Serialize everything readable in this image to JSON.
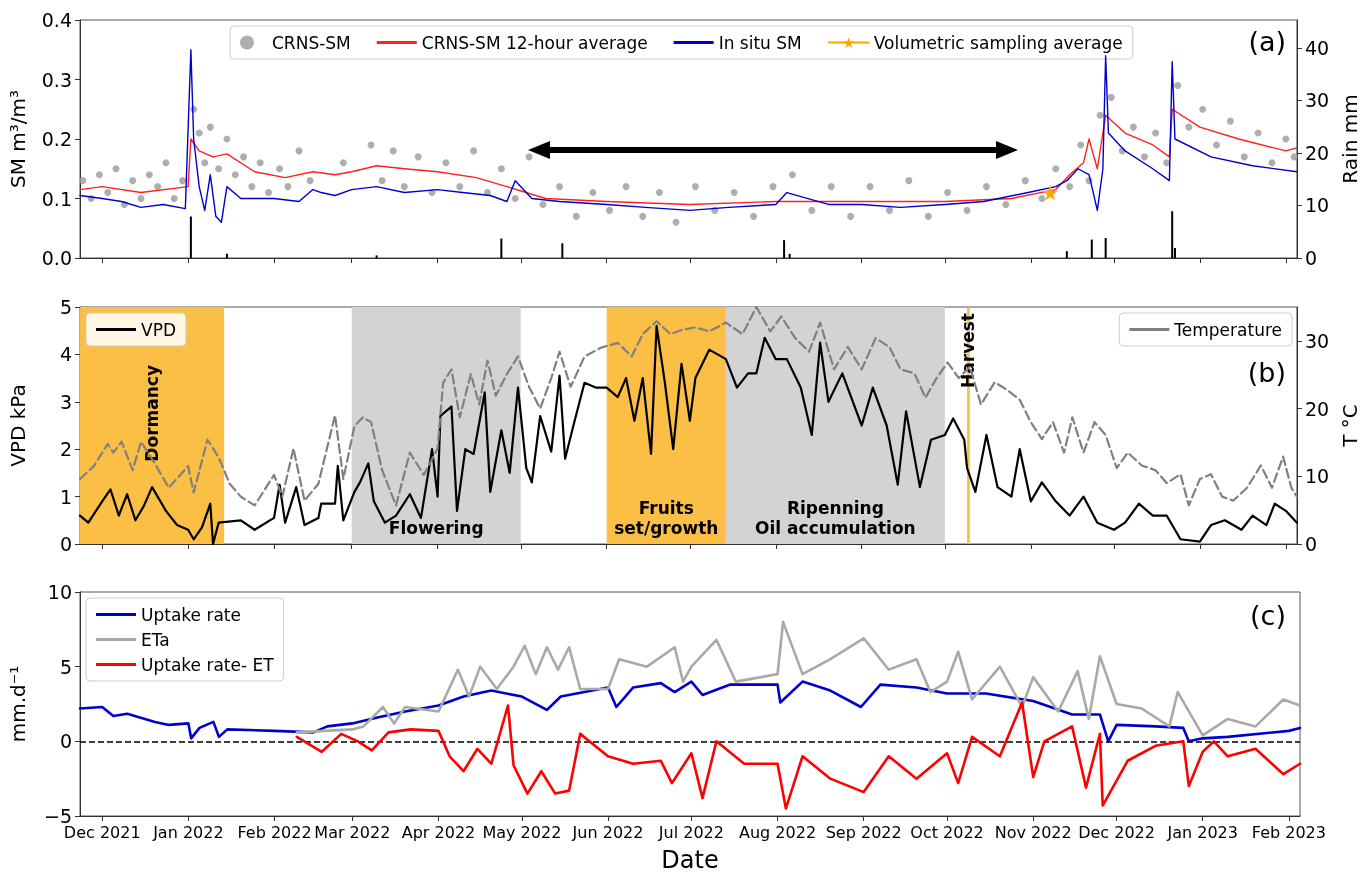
{
  "chart_data": [
    {
      "type": "line",
      "ylabel": "SM m³/m³",
      "y2label": "Rain mm",
      "xlim": [
        "2021-11-23",
        "2023-02-05"
      ],
      "xticks": [
        {
          "value": "2021-12-01",
          "label": null
        },
        {
          "value": "2022-01-01",
          "label": null
        },
        {
          "value": "2022-02-01",
          "label": null
        },
        {
          "value": "2022-03-01",
          "label": null
        },
        {
          "value": "2022-04-01",
          "label": null
        },
        {
          "value": "2022-05-01",
          "label": null
        },
        {
          "value": "2022-06-01",
          "label": null
        },
        {
          "value": "2022-07-01",
          "label": null
        },
        {
          "value": "2022-08-01",
          "label": null
        },
        {
          "value": "2022-09-01",
          "label": null
        },
        {
          "value": "2022-10-01",
          "label": null
        },
        {
          "value": "2022-11-01",
          "label": null
        },
        {
          "value": "2022-12-01",
          "label": null
        },
        {
          "value": "2023-01-01",
          "label": null
        },
        {
          "value": "2023-02-01",
          "label": null
        }
      ],
      "ylim": [
        0,
        0.4
      ],
      "yticks": [
        {
          "value": 0,
          "label": "0.0"
        },
        {
          "value": 0.1,
          "label": "0.1"
        },
        {
          "value": 0.2,
          "label": "0.2"
        },
        {
          "value": 0.3,
          "label": "0.3"
        },
        {
          "value": 0.4,
          "label": "0.4"
        }
      ],
      "y2lim": [
        0,
        45.3
      ],
      "y2ticks": [
        0,
        10,
        20,
        30,
        40
      ],
      "tick_labels": "y",
      "legend": "top",
      "annotations": [
        "(a)"
      ],
      "series": [
        {
          "name": "CRNS-SM",
          "type": "scatter",
          "marker": "circle",
          "color": "#a0a0a0",
          "x": [
            "2021-11-24",
            "2021-11-27",
            "2021-11-30",
            "2021-12-03",
            "2021-12-06",
            "2021-12-09",
            "2021-12-12",
            "2021-12-15",
            "2021-12-18",
            "2021-12-21",
            "2021-12-24",
            "2021-12-27",
            "2021-12-30",
            "2022-01-03",
            "2022-01-05",
            "2022-01-07",
            "2022-01-09",
            "2022-01-12",
            "2022-01-15",
            "2022-01-18",
            "2022-01-21",
            "2022-01-24",
            "2022-01-27",
            "2022-01-30",
            "2022-02-03",
            "2022-02-06",
            "2022-02-10",
            "2022-02-14",
            "2022-02-26",
            "2022-03-08",
            "2022-03-12",
            "2022-03-16",
            "2022-03-20",
            "2022-03-25",
            "2022-03-30",
            "2022-04-04",
            "2022-04-09",
            "2022-04-14",
            "2022-04-19",
            "2022-04-24",
            "2022-04-29",
            "2022-05-04",
            "2022-05-09",
            "2022-05-15",
            "2022-05-21",
            "2022-05-27",
            "2022-06-02",
            "2022-06-08",
            "2022-06-14",
            "2022-06-20",
            "2022-06-26",
            "2022-07-03",
            "2022-07-10",
            "2022-07-17",
            "2022-07-24",
            "2022-07-31",
            "2022-08-07",
            "2022-08-14",
            "2022-08-21",
            "2022-08-28",
            "2022-09-04",
            "2022-09-11",
            "2022-09-18",
            "2022-09-25",
            "2022-10-02",
            "2022-10-09",
            "2022-10-16",
            "2022-10-23",
            "2022-10-30",
            "2022-11-05",
            "2022-11-10",
            "2022-11-15",
            "2022-11-19",
            "2022-11-22",
            "2022-11-26",
            "2022-11-30",
            "2022-12-04",
            "2022-12-08",
            "2022-12-12",
            "2022-12-16",
            "2022-12-20",
            "2022-12-24",
            "2022-12-28",
            "2023-01-02",
            "2023-01-07",
            "2023-01-12",
            "2023-01-17",
            "2023-01-22",
            "2023-01-27",
            "2023-02-01",
            "2023-02-04"
          ],
          "values": [
            0.13,
            0.1,
            0.14,
            0.11,
            0.15,
            0.09,
            0.13,
            0.1,
            0.14,
            0.12,
            0.16,
            0.1,
            0.13,
            0.25,
            0.21,
            0.16,
            0.22,
            0.15,
            0.2,
            0.14,
            0.17,
            0.12,
            0.16,
            0.11,
            0.15,
            0.12,
            0.18,
            0.13,
            0.16,
            0.19,
            0.13,
            0.18,
            0.12,
            0.17,
            0.11,
            0.16,
            0.12,
            0.18,
            0.11,
            0.15,
            0.1,
            0.17,
            0.09,
            0.12,
            0.07,
            0.11,
            0.08,
            0.12,
            0.07,
            0.11,
            0.06,
            0.12,
            0.08,
            0.11,
            0.07,
            0.12,
            0.14,
            0.08,
            0.12,
            0.07,
            0.12,
            0.08,
            0.13,
            0.07,
            0.11,
            0.08,
            0.12,
            0.09,
            0.13,
            0.1,
            0.15,
            0.12,
            0.19,
            0.13,
            0.24,
            0.27,
            0.18,
            0.22,
            0.17,
            0.21,
            0.16,
            0.29,
            0.22,
            0.25,
            0.19,
            0.23,
            0.17,
            0.21,
            0.16,
            0.2,
            0.17
          ]
        },
        {
          "name": "CRNS-SM 12-hour average",
          "marker": "none",
          "color": "#ff2020",
          "x": [
            "2021-11-23",
            "2021-12-01",
            "2021-12-15",
            "2022-01-01",
            "2022-01-02",
            "2022-01-05",
            "2022-01-10",
            "2022-01-15",
            "2022-01-25",
            "2022-02-05",
            "2022-02-15",
            "2022-02-23",
            "2022-03-01",
            "2022-03-10",
            "2022-03-20",
            "2022-04-01",
            "2022-04-15",
            "2022-04-26",
            "2022-05-10",
            "2022-06-01",
            "2022-07-01",
            "2022-08-01",
            "2022-09-01",
            "2022-10-01",
            "2022-10-25",
            "2022-11-10",
            "2022-11-15",
            "2022-11-20",
            "2022-11-22",
            "2022-11-25",
            "2022-11-28",
            "2022-12-05",
            "2022-12-15",
            "2022-12-21",
            "2022-12-22",
            "2023-01-01",
            "2023-01-15",
            "2023-02-01",
            "2023-02-05"
          ],
          "values": [
            0.115,
            0.12,
            0.11,
            0.12,
            0.2,
            0.18,
            0.17,
            0.175,
            0.145,
            0.135,
            0.145,
            0.14,
            0.145,
            0.155,
            0.15,
            0.145,
            0.135,
            0.12,
            0.1,
            0.095,
            0.09,
            0.095,
            0.095,
            0.095,
            0.1,
            0.115,
            0.14,
            0.16,
            0.2,
            0.15,
            0.24,
            0.21,
            0.19,
            0.17,
            0.25,
            0.22,
            0.2,
            0.18,
            0.185
          ]
        },
        {
          "name": "In situ SM",
          "marker": "none",
          "color": "#0000cc",
          "x": [
            "2021-11-23",
            "2021-12-01",
            "2021-12-08",
            "2021-12-15",
            "2021-12-23",
            "2021-12-31",
            "2022-01-02",
            "2022-01-03",
            "2022-01-05",
            "2022-01-07",
            "2022-01-09",
            "2022-01-11",
            "2022-01-13",
            "2022-01-15",
            "2022-01-20",
            "2022-02-01",
            "2022-02-10",
            "2022-02-15",
            "2022-02-18",
            "2022-02-23",
            "2022-03-01",
            "2022-03-10",
            "2022-03-20",
            "2022-04-01",
            "2022-04-10",
            "2022-04-20",
            "2022-04-26",
            "2022-04-29",
            "2022-05-05",
            "2022-05-15",
            "2022-06-01",
            "2022-06-15",
            "2022-07-01",
            "2022-07-15",
            "2022-08-01",
            "2022-08-05",
            "2022-08-20",
            "2022-09-01",
            "2022-09-15",
            "2022-10-01",
            "2022-10-15",
            "2022-10-31",
            "2022-11-10",
            "2022-11-14",
            "2022-11-18",
            "2022-11-22",
            "2022-11-25",
            "2022-11-27",
            "2022-11-28",
            "2022-11-29",
            "2022-12-05",
            "2022-12-15",
            "2022-12-21",
            "2022-12-22",
            "2022-12-23",
            "2023-01-05",
            "2023-01-20",
            "2023-02-05"
          ],
          "values": [
            0.105,
            0.1,
            0.095,
            0.085,
            0.09,
            0.083,
            0.35,
            0.2,
            0.12,
            0.08,
            0.14,
            0.07,
            0.06,
            0.12,
            0.1,
            0.1,
            0.095,
            0.115,
            0.11,
            0.105,
            0.115,
            0.12,
            0.11,
            0.115,
            0.11,
            0.105,
            0.095,
            0.13,
            0.1,
            0.095,
            0.09,
            0.085,
            0.08,
            0.085,
            0.09,
            0.11,
            0.09,
            0.09,
            0.085,
            0.09,
            0.095,
            0.11,
            0.12,
            0.13,
            0.15,
            0.14,
            0.08,
            0.15,
            0.34,
            0.21,
            0.18,
            0.15,
            0.13,
            0.33,
            0.2,
            0.17,
            0.155,
            0.145
          ]
        },
        {
          "name": "Volumetric sampling average",
          "marker": "star",
          "color": "#ffa500",
          "x": [
            "2022-11-08"
          ],
          "values": [
            0.11
          ]
        },
        {
          "type": "bar",
          "axis": "y2",
          "color": "#000000",
          "x": [
            "2022-01-02",
            "2022-01-15",
            "2022-03-10",
            "2022-04-24",
            "2022-05-16",
            "2022-08-04",
            "2022-08-06",
            "2022-11-14",
            "2022-11-23",
            "2022-11-28",
            "2022-12-22",
            "2022-12-23"
          ],
          "values": [
            7.9,
            0.8,
            0.5,
            3.7,
            2.8,
            3.4,
            0.8,
            1.3,
            3.5,
            3.8,
            8.9,
            1.9
          ]
        }
      ]
    },
    {
      "type": "line",
      "ylabel": "VPD kPa",
      "y2label": "T °C",
      "xlim": [
        "2021-11-23",
        "2023-02-05"
      ],
      "xticks": [
        {
          "value": "2021-12-01",
          "label": null
        },
        {
          "value": "2022-01-01",
          "label": null
        },
        {
          "value": "2022-02-01",
          "label": null
        },
        {
          "value": "2022-03-01",
          "label": null
        },
        {
          "value": "2022-04-01",
          "label": null
        },
        {
          "value": "2022-05-01",
          "label": null
        },
        {
          "value": "2022-06-01",
          "label": null
        },
        {
          "value": "2022-07-01",
          "label": null
        },
        {
          "value": "2022-08-01",
          "label": null
        },
        {
          "value": "2022-09-01",
          "label": null
        },
        {
          "value": "2022-10-01",
          "label": null
        },
        {
          "value": "2022-11-01",
          "label": null
        },
        {
          "value": "2022-12-01",
          "label": null
        },
        {
          "value": "2023-01-01",
          "label": null
        },
        {
          "value": "2023-02-01",
          "label": null
        }
      ],
      "ylim": [
        0,
        5
      ],
      "yticks": [
        0,
        1,
        2,
        3,
        4,
        5
      ],
      "y2lim": [
        0,
        35
      ],
      "y2ticks": [
        0,
        10,
        20,
        30
      ],
      "tick_labels": "y",
      "legend": "top",
      "annotations": [
        "(b)"
      ],
      "bands": [
        {
          "axis": "x",
          "from": "2021-11-23",
          "to": "2022-01-14",
          "label": "Dormancy",
          "color": "#fbbf45"
        },
        {
          "axis": "x",
          "from": "2022-03-01",
          "to": "2022-05-01",
          "label": "Flowering",
          "color": "#d3d3d3"
        },
        {
          "axis": "x",
          "from": "2022-06-01",
          "to": "2022-07-14",
          "label": "Fruits\nset/growth",
          "color": "#fbbf45"
        },
        {
          "axis": "x",
          "from": "2022-07-14",
          "to": "2022-10-01",
          "label": "Ripenning\nOil accumulation",
          "color": "#d3d3d3"
        },
        {
          "axis": "x",
          "from": "2022-10-09",
          "to": "2022-10-10",
          "label": "Harvest",
          "color": "#fbbf45"
        }
      ],
      "series": [
        {
          "name": "VPD",
          "color": "#000000",
          "x": [
            "2021-11-23",
            "2021-11-26",
            "2021-12-01",
            "2021-12-04",
            "2021-12-07",
            "2021-12-10",
            "2021-12-13",
            "2021-12-16",
            "2021-12-19",
            "2021-12-24",
            "2021-12-28",
            "2022-01-01",
            "2022-01-03",
            "2022-01-06",
            "2022-01-09",
            "2022-01-10",
            "2022-01-12",
            "2022-01-20",
            "2022-01-25",
            "2022-02-01",
            "2022-02-03",
            "2022-02-05",
            "2022-02-09",
            "2022-02-12",
            "2022-02-17",
            "2022-02-18",
            "2022-02-23",
            "2022-02-24",
            "2022-02-26",
            "2022-03-02",
            "2022-03-04",
            "2022-03-07",
            "2022-03-09",
            "2022-03-13",
            "2022-03-17",
            "2022-03-22",
            "2022-03-26",
            "2022-03-30",
            "2022-04-01",
            "2022-04-02",
            "2022-04-06",
            "2022-04-08",
            "2022-04-11",
            "2022-04-14",
            "2022-04-18",
            "2022-04-20",
            "2022-04-24",
            "2022-04-27",
            "2022-04-30",
            "2022-05-03",
            "2022-05-05",
            "2022-05-08",
            "2022-05-12",
            "2022-05-15",
            "2022-05-17",
            "2022-05-20",
            "2022-05-24",
            "2022-05-28",
            "2022-06-01",
            "2022-06-05",
            "2022-06-08",
            "2022-06-11",
            "2022-06-14",
            "2022-06-17",
            "2022-06-19",
            "2022-06-22",
            "2022-06-25",
            "2022-06-28",
            "2022-07-01",
            "2022-07-03",
            "2022-07-08",
            "2022-07-14",
            "2022-07-18",
            "2022-07-22",
            "2022-07-25",
            "2022-07-28",
            "2022-08-01",
            "2022-08-05",
            "2022-08-10",
            "2022-08-14",
            "2022-08-17",
            "2022-08-20",
            "2022-08-25",
            "2022-09-01",
            "2022-09-05",
            "2022-09-10",
            "2022-09-14",
            "2022-09-17",
            "2022-09-22",
            "2022-09-26",
            "2022-10-01",
            "2022-10-04",
            "2022-10-08",
            "2022-10-09",
            "2022-10-12",
            "2022-10-16",
            "2022-10-20",
            "2022-10-25",
            "2022-10-28",
            "2022-11-01",
            "2022-11-05",
            "2022-11-10",
            "2022-11-15",
            "2022-11-20",
            "2022-11-25",
            "2022-12-01",
            "2022-12-05",
            "2022-12-10",
            "2022-12-15",
            "2022-12-20",
            "2022-12-25",
            "2023-01-01",
            "2023-01-05",
            "2023-01-10",
            "2023-01-16",
            "2023-01-20",
            "2023-01-25",
            "2023-01-28",
            "2023-02-01",
            "2023-02-05"
          ],
          "values": [
            0.6,
            0.45,
            0.9,
            1.15,
            0.6,
            1.05,
            0.5,
            0.8,
            1.2,
            0.7,
            0.4,
            0.3,
            0.1,
            0.35,
            0.85,
            0,
            0.45,
            0.5,
            0.3,
            0.55,
            1.25,
            0.45,
            1.2,
            0.4,
            0.55,
            0.85,
            0.85,
            1.65,
            0.5,
            1.1,
            1.3,
            1.7,
            0.9,
            0.45,
            0.6,
            1.05,
            0.55,
            2,
            1,
            2.7,
            2.9,
            0.7,
            2,
            1.9,
            3.2,
            1.1,
            2.4,
            1.5,
            3.3,
            1.6,
            1.3,
            2.7,
            1.95,
            3.55,
            1.8,
            2.5,
            3.4,
            3.3,
            3.3,
            3.1,
            3.5,
            2.6,
            3.5,
            1.9,
            4.6,
            3.4,
            2,
            3.8,
            2.6,
            3.5,
            4.1,
            3.9,
            3.3,
            3.6,
            3.6,
            4.35,
            3.9,
            3.9,
            3.3,
            2.3,
            4.25,
            3,
            3.6,
            2.5,
            3.3,
            2.5,
            1.25,
            2.8,
            1.2,
            2.2,
            2.3,
            2.65,
            2.2,
            1.6,
            1.1,
            2.3,
            1.2,
            1,
            2,
            0.9,
            1.3,
            0.9,
            0.6,
            1,
            0.45,
            0.3,
            0.45,
            0.85,
            0.6,
            0.6,
            0.1,
            0.05,
            0.4,
            0.5,
            0.3,
            0.6,
            0.4,
            0.85,
            0.7,
            0.45
          ]
        },
        {
          "name": "Temperature",
          "axis": "y2",
          "line_style": "dashed",
          "color": "#808080",
          "x": [
            "2021-11-23",
            "2021-11-28",
            "2021-12-03",
            "2021-12-05",
            "2021-12-08",
            "2021-12-12",
            "2021-12-15",
            "2021-12-20",
            "2021-12-25",
            "2022-01-01",
            "2022-01-03",
            "2022-01-08",
            "2022-01-12",
            "2022-01-16",
            "2022-01-20",
            "2022-01-25",
            "2022-02-01",
            "2022-02-04",
            "2022-02-08",
            "2022-02-12",
            "2022-02-17",
            "2022-02-23",
            "2022-02-26",
            "2022-03-02",
            "2022-03-05",
            "2022-03-08",
            "2022-03-12",
            "2022-03-17",
            "2022-03-22",
            "2022-03-27",
            "2022-04-01",
            "2022-04-03",
            "2022-04-06",
            "2022-04-09",
            "2022-04-13",
            "2022-04-16",
            "2022-04-19",
            "2022-04-22",
            "2022-04-26",
            "2022-04-30",
            "2022-05-04",
            "2022-05-08",
            "2022-05-12",
            "2022-05-15",
            "2022-05-19",
            "2022-05-24",
            "2022-05-30",
            "2022-06-05",
            "2022-06-10",
            "2022-06-14",
            "2022-06-19",
            "2022-06-24",
            "2022-06-28",
            "2022-07-03",
            "2022-07-08",
            "2022-07-14",
            "2022-07-20",
            "2022-07-25",
            "2022-07-30",
            "2022-08-03",
            "2022-08-08",
            "2022-08-13",
            "2022-08-17",
            "2022-08-22",
            "2022-08-27",
            "2022-09-01",
            "2022-09-06",
            "2022-09-11",
            "2022-09-15",
            "2022-09-20",
            "2022-09-24",
            "2022-09-28",
            "2022-10-02",
            "2022-10-06",
            "2022-10-10",
            "2022-10-14",
            "2022-10-19",
            "2022-10-24",
            "2022-10-28",
            "2022-11-01",
            "2022-11-05",
            "2022-11-09",
            "2022-11-13",
            "2022-11-16",
            "2022-11-20",
            "2022-11-24",
            "2022-11-28",
            "2022-12-02",
            "2022-12-06",
            "2022-12-11",
            "2022-12-16",
            "2022-12-20",
            "2022-12-25",
            "2022-12-28",
            "2023-01-01",
            "2023-01-05",
            "2023-01-09",
            "2023-01-13",
            "2023-01-18",
            "2023-01-23",
            "2023-01-27",
            "2023-01-31",
            "2023-02-03",
            "2023-02-05"
          ],
          "values": [
            9.6,
            11.5,
            14.8,
            13.5,
            15.1,
            10.9,
            15.1,
            11.9,
            8.3,
            11.5,
            7.6,
            15.4,
            12.8,
            8.9,
            7,
            5.7,
            10.2,
            7,
            14.1,
            6.4,
            8.9,
            19,
            9.6,
            17.4,
            18.7,
            18,
            10.9,
            5.7,
            13.5,
            10.2,
            14.1,
            23.8,
            25.8,
            18.7,
            25.1,
            20.6,
            27.1,
            21.9,
            25.1,
            27.7,
            23.2,
            20,
            24.5,
            28.4,
            23.2,
            27.7,
            29,
            29.7,
            27.7,
            31,
            32.9,
            31,
            31.6,
            32,
            31.4,
            32.7,
            31,
            35,
            31.4,
            33.6,
            30.4,
            28.4,
            32.7,
            25.8,
            29.1,
            25.8,
            30.4,
            29.1,
            25.8,
            25.2,
            21.6,
            24.5,
            26.8,
            24.5,
            26.2,
            20.6,
            23.9,
            22.6,
            21.3,
            18,
            15.5,
            18,
            13.5,
            18.7,
            13.5,
            18,
            16.1,
            11.2,
            13.5,
            11.6,
            10.9,
            9,
            10.3,
            5.7,
            9.6,
            10.3,
            7,
            6.4,
            8.3,
            11.6,
            8.3,
            12.9,
            8.3,
            7
          ]
        }
      ]
    },
    {
      "type": "line",
      "xlabel": "Date",
      "ylabel": "mm.d⁻¹",
      "xlim": [
        "2021-11-23",
        "2023-02-05"
      ],
      "xticks": [
        {
          "value": "2021-12-01",
          "label": "Dec 2021"
        },
        {
          "value": "2022-01-01",
          "label": "Jan 2022"
        },
        {
          "value": "2022-02-01",
          "label": "Feb 2022"
        },
        {
          "value": "2022-03-01",
          "label": "Mar 2022"
        },
        {
          "value": "2022-04-01",
          "label": "Apr 2022"
        },
        {
          "value": "2022-05-01",
          "label": "May 2022"
        },
        {
          "value": "2022-06-01",
          "label": "Jun 2022"
        },
        {
          "value": "2022-07-01",
          "label": "Jul 2022"
        },
        {
          "value": "2022-08-01",
          "label": "Aug 2022"
        },
        {
          "value": "2022-09-01",
          "label": "Sep 2022"
        },
        {
          "value": "2022-10-01",
          "label": "Oct 2022"
        },
        {
          "value": "2022-11-01",
          "label": "Nov 2022"
        },
        {
          "value": "2022-12-01",
          "label": "Dec 2022"
        },
        {
          "value": "2023-01-01",
          "label": "Jan 2023"
        },
        {
          "value": "2023-02-01",
          "label": "Feb 2023"
        }
      ],
      "ylim": [
        -5,
        10
      ],
      "yticks": [
        {
          "value": -5,
          "label": "−5"
        },
        0,
        5,
        10
      ],
      "legend": "top left",
      "annotations": [
        "(c)"
      ],
      "ref_lines": [
        {
          "axis": "y",
          "value": 0,
          "color": "#000000",
          "line_style": "dashed"
        }
      ],
      "series": [
        {
          "name": "Uptake rate",
          "color": "#0000cc",
          "x": [
            "2021-11-23",
            "2021-12-01",
            "2021-12-05",
            "2021-12-10",
            "2021-12-20",
            "2021-12-25",
            "2022-01-01",
            "2022-01-02",
            "2022-01-05",
            "2022-01-10",
            "2022-01-12",
            "2022-01-15",
            "2022-02-01",
            "2022-02-15",
            "2022-02-20",
            "2022-03-01",
            "2022-03-10",
            "2022-03-20",
            "2022-04-01",
            "2022-04-10",
            "2022-04-20",
            "2022-05-01",
            "2022-05-10",
            "2022-05-15",
            "2022-06-01",
            "2022-06-04",
            "2022-06-10",
            "2022-06-20",
            "2022-06-25",
            "2022-07-01",
            "2022-07-05",
            "2022-07-15",
            "2022-08-01",
            "2022-08-02",
            "2022-08-10",
            "2022-08-20",
            "2022-08-31",
            "2022-09-07",
            "2022-09-20",
            "2022-10-01",
            "2022-10-15",
            "2022-11-01",
            "2022-11-15",
            "2022-11-25",
            "2022-11-28",
            "2022-12-01",
            "2022-12-15",
            "2022-12-25",
            "2022-12-27",
            "2023-01-01",
            "2023-01-10",
            "2023-02-01",
            "2023-02-05"
          ],
          "values": [
            2.2,
            2.3,
            1.7,
            1.85,
            1.3,
            1.1,
            1.2,
            0.2,
            0.9,
            1.3,
            0.3,
            0.8,
            0.7,
            0.6,
            1,
            1.2,
            1.6,
            2,
            2.4,
            3,
            3.4,
            3,
            2.1,
            3,
            3.6,
            2.3,
            3.6,
            3.9,
            3.3,
            4,
            3.1,
            3.8,
            3.8,
            2.6,
            4,
            3.4,
            2.3,
            3.8,
            3.6,
            3.2,
            3.2,
            2.7,
            1.8,
            1.8,
            0,
            1.1,
            1,
            0.9,
            0,
            0.2,
            0.3,
            0.7,
            0.9
          ]
        },
        {
          "name": "ETa",
          "color": "#a9a9a9",
          "x": [
            "2022-02-09",
            "2022-03-01",
            "2022-03-05",
            "2022-03-12",
            "2022-03-16",
            "2022-03-20",
            "2022-04-01",
            "2022-04-08",
            "2022-04-12",
            "2022-04-16",
            "2022-04-22",
            "2022-04-28",
            "2022-05-02",
            "2022-05-06",
            "2022-05-10",
            "2022-05-14",
            "2022-05-18",
            "2022-05-22",
            "2022-06-01",
            "2022-06-05",
            "2022-06-15",
            "2022-06-25",
            "2022-06-28",
            "2022-07-01",
            "2022-07-10",
            "2022-07-17",
            "2022-08-01",
            "2022-08-03",
            "2022-08-10",
            "2022-08-20",
            "2022-09-01",
            "2022-09-10",
            "2022-09-20",
            "2022-09-25",
            "2022-10-01",
            "2022-10-05",
            "2022-10-10",
            "2022-10-20",
            "2022-10-28",
            "2022-11-01",
            "2022-11-10",
            "2022-11-17",
            "2022-11-21",
            "2022-11-25",
            "2022-12-01",
            "2022-12-10",
            "2022-12-20",
            "2022-12-23",
            "2023-01-01",
            "2023-01-10",
            "2023-01-20",
            "2023-01-30",
            "2023-02-05"
          ],
          "values": [
            0.6,
            0.8,
            1,
            2.3,
            1.2,
            2.3,
            2,
            4.8,
            3,
            5,
            3.5,
            5,
            6.4,
            4.5,
            6.3,
            4.8,
            6.3,
            3.5,
            3.5,
            5.5,
            5,
            6.3,
            4,
            5,
            6.8,
            4,
            4.5,
            8,
            4.5,
            5.5,
            6.9,
            4.8,
            5.5,
            3.3,
            4,
            6,
            2.8,
            5,
            2.3,
            4.3,
            2,
            4.7,
            1.5,
            5.7,
            2.5,
            2.2,
            1,
            3.3,
            0.4,
            1.5,
            1,
            2.8,
            2.4
          ]
        },
        {
          "name": "Uptake rate- ET",
          "color": "#ff0000",
          "x": [
            "2022-02-09",
            "2022-02-18",
            "2022-02-25",
            "2022-03-03",
            "2022-03-08",
            "2022-03-14",
            "2022-03-22",
            "2022-04-01",
            "2022-04-05",
            "2022-04-10",
            "2022-04-15",
            "2022-04-20",
            "2022-04-26",
            "2022-04-28",
            "2022-05-03",
            "2022-05-08",
            "2022-05-13",
            "2022-05-18",
            "2022-05-22",
            "2022-06-01",
            "2022-06-10",
            "2022-06-20",
            "2022-06-24",
            "2022-07-01",
            "2022-07-05",
            "2022-07-10",
            "2022-07-20",
            "2022-08-01",
            "2022-08-04",
            "2022-08-10",
            "2022-08-20",
            "2022-09-01",
            "2022-09-10",
            "2022-09-20",
            "2022-10-01",
            "2022-10-05",
            "2022-10-10",
            "2022-10-20",
            "2022-10-28",
            "2022-11-01",
            "2022-11-05",
            "2022-11-15",
            "2022-11-20",
            "2022-11-25",
            "2022-11-26",
            "2022-12-05",
            "2022-12-15",
            "2022-12-25",
            "2022-12-27",
            "2023-01-01",
            "2023-01-05",
            "2023-01-10",
            "2023-01-20",
            "2023-01-30",
            "2023-02-05"
          ],
          "values": [
            0.3,
            -0.7,
            0.5,
            0,
            -0.6,
            0.6,
            0.8,
            0.7,
            -1,
            -2,
            -0.5,
            -1.5,
            2.4,
            -1.6,
            -3.5,
            -2,
            -3.5,
            -3.3,
            0.5,
            -1,
            -1.5,
            -1.3,
            -2.8,
            -0.8,
            -3.8,
            0,
            -1.5,
            -1.5,
            -4.5,
            -1,
            -2.5,
            -3.4,
            -1,
            -2.5,
            -0.8,
            -2.8,
            0.3,
            -1,
            2.6,
            -2.4,
            0,
            1,
            -3.1,
            0.5,
            -4.3,
            -1.3,
            -0.3,
            0,
            -3,
            -0.7,
            0,
            -1,
            -0.5,
            -2.2,
            -1.5
          ]
        }
      ]
    }
  ]
}
